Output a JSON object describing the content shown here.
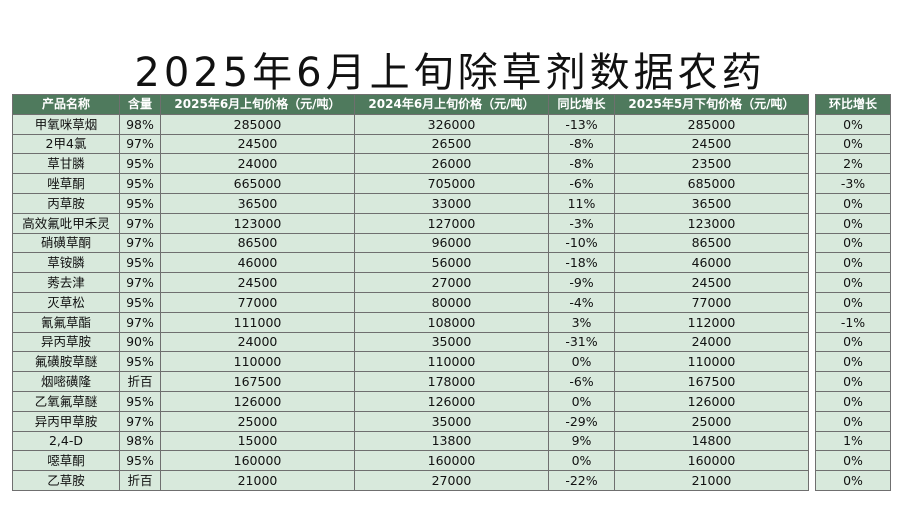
{
  "title": "2025年6月上旬除草剂数据农药",
  "headers": [
    "产品名称",
    "含量",
    "2025年6月上旬价格（元/吨）",
    "2024年6月上旬价格（元/吨）",
    "同比增长",
    "2025年5月下旬价格（元/吨）",
    "环比增长"
  ],
  "rows": [
    [
      "甲氧咪草烟",
      "98%",
      "285000",
      "326000",
      "-13%",
      "285000",
      "0%"
    ],
    [
      "2甲4氯",
      "97%",
      "24500",
      "26500",
      "-8%",
      "24500",
      "0%"
    ],
    [
      "草甘膦",
      "95%",
      "24000",
      "26000",
      "-8%",
      "23500",
      "2%"
    ],
    [
      "唑草酮",
      "95%",
      "665000",
      "705000",
      "-6%",
      "685000",
      "-3%"
    ],
    [
      "丙草胺",
      "95%",
      "36500",
      "33000",
      "11%",
      "36500",
      "0%"
    ],
    [
      "高效氟吡甲禾灵",
      "97%",
      "123000",
      "127000",
      "-3%",
      "123000",
      "0%"
    ],
    [
      "硝磺草酮",
      "97%",
      "86500",
      "96000",
      "-10%",
      "86500",
      "0%"
    ],
    [
      "草铵膦",
      "95%",
      "46000",
      "56000",
      "-18%",
      "46000",
      "0%"
    ],
    [
      "莠去津",
      "97%",
      "24500",
      "27000",
      "-9%",
      "24500",
      "0%"
    ],
    [
      "灭草松",
      "95%",
      "77000",
      "80000",
      "-4%",
      "77000",
      "0%"
    ],
    [
      "氰氟草酯",
      "97%",
      "111000",
      "108000",
      "3%",
      "112000",
      "-1%"
    ],
    [
      "异丙草胺",
      "90%",
      "24000",
      "35000",
      "-31%",
      "24000",
      "0%"
    ],
    [
      "氟磺胺草醚",
      "95%",
      "110000",
      "110000",
      "0%",
      "110000",
      "0%"
    ],
    [
      "烟嘧磺隆",
      "折百",
      "167500",
      "178000",
      "-6%",
      "167500",
      "0%"
    ],
    [
      "乙氧氟草醚",
      "95%",
      "126000",
      "126000",
      "0%",
      "126000",
      "0%"
    ],
    [
      "异丙甲草胺",
      "97%",
      "25000",
      "35000",
      "-29%",
      "25000",
      "0%"
    ],
    [
      "2,4-D",
      "98%",
      "15000",
      "13800",
      "9%",
      "14800",
      "1%"
    ],
    [
      "噁草酮",
      "95%",
      "160000",
      "160000",
      "0%",
      "160000",
      "0%"
    ],
    [
      "乙草胺",
      "折百",
      "21000",
      "27000",
      "-22%",
      "21000",
      "0%"
    ]
  ]
}
